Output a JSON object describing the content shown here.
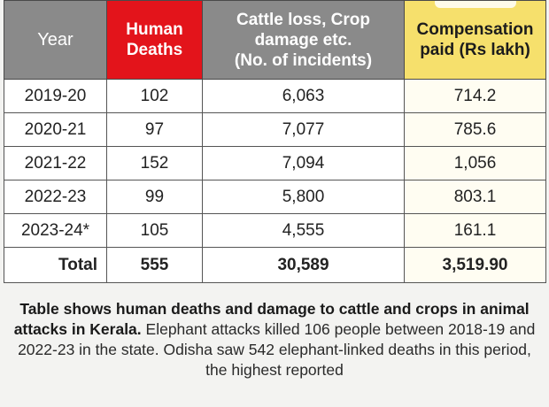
{
  "table": {
    "headers": {
      "year": "Year",
      "deaths": [
        "Human",
        "Deaths"
      ],
      "cattle": [
        "Cattle loss, Crop",
        "damage etc.",
        "(No. of incidents)"
      ],
      "compensation": [
        "Compensation",
        "paid (Rs lakh)"
      ]
    },
    "rows": [
      {
        "year": "2019-20",
        "deaths": "102",
        "incidents": "6,063",
        "compensation": "714.2"
      },
      {
        "year": "2020-21",
        "deaths": "97",
        "incidents": "7,077",
        "compensation": "785.6"
      },
      {
        "year": "2021-22",
        "deaths": "152",
        "incidents": "7,094",
        "compensation": "1,056"
      },
      {
        "year": "2022-23",
        "deaths": "99",
        "incidents": "5,800",
        "compensation": "803.1"
      },
      {
        "year": "2023-24*",
        "deaths": "105",
        "incidents": "4,555",
        "compensation": "161.1"
      }
    ],
    "total": {
      "label": "Total",
      "deaths": "555",
      "incidents": "30,589",
      "compensation": "3,519.90"
    }
  },
  "caption": {
    "lead": "Table shows human deaths and damage to cattle and crops in animal attacks in Kerala.",
    "body": "Elephant attacks killed 106 people between 2018-19 and 2022-23 in the state. Odisha saw 542 elephant-linked deaths in this period, the highest reported"
  },
  "colors": {
    "header_grey": "#8a8a8a",
    "header_red": "#e3141b",
    "header_yellow": "#f6e06c"
  }
}
